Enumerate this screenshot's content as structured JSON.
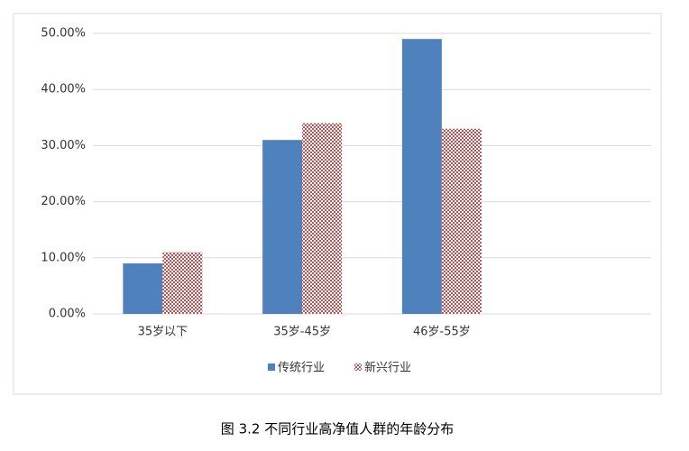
{
  "chart_data": {
    "type": "bar",
    "caption": "图 3.2 不同行业高净值人群的年龄分布",
    "categories": [
      "35岁以下",
      "35岁-45岁",
      "46岁-55岁",
      null
    ],
    "series": [
      {
        "name": "传统行业",
        "color": "#4f81bd",
        "values": [
          9,
          31,
          49,
          null
        ]
      },
      {
        "name": "新兴行业",
        "color": "#c0504d",
        "pattern": "checker",
        "values": [
          11,
          34,
          33,
          null
        ]
      }
    ],
    "ylim": [
      0,
      50
    ],
    "yticks": [
      {
        "value": 0,
        "label": "0.00%"
      },
      {
        "value": 10,
        "label": "10.00%"
      },
      {
        "value": 20,
        "label": "20.00%"
      },
      {
        "value": 30,
        "label": "30.00%"
      },
      {
        "value": 40,
        "label": "40.00%"
      },
      {
        "value": 50,
        "label": "50.00%"
      }
    ],
    "grid": true,
    "legend": "bottom"
  }
}
